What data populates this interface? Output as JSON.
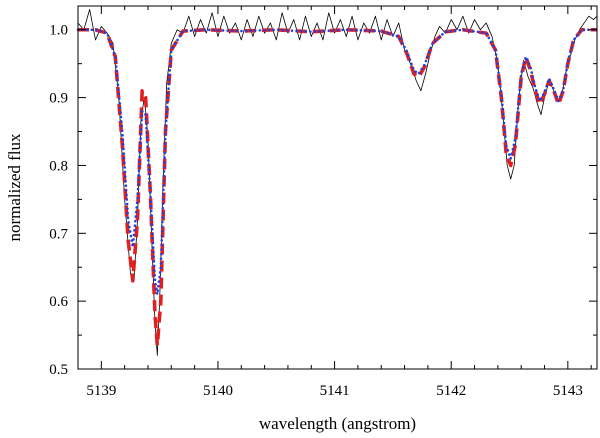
{
  "chart_data": {
    "type": "line",
    "title": "",
    "xlabel": "wavelength (angstrom)",
    "ylabel": "normalized flux",
    "xlim": [
      5138.8,
      5143.25
    ],
    "ylim": [
      0.5,
      1.035
    ],
    "x_ticks": [
      5139,
      5140,
      5141,
      5142,
      5143
    ],
    "x_tick_labels": [
      "5139",
      "5140",
      "5141",
      "5142",
      "5143"
    ],
    "y_ticks": [
      0.5,
      0.6,
      0.7,
      0.8,
      0.9,
      1.0
    ],
    "y_tick_labels": [
      "0.5",
      "0.6",
      "0.7",
      "0.8",
      "0.9",
      "1.0"
    ],
    "grid": false,
    "legend": "none",
    "series": [
      {
        "style": "solid-thin",
        "color": "#000000",
        "points": [
          [
            5138.8,
            1.01
          ],
          [
            5138.85,
            1.0
          ],
          [
            5138.9,
            1.03
          ],
          [
            5138.95,
            0.985
          ],
          [
            5139.0,
            1.005
          ],
          [
            5139.05,
            0.995
          ],
          [
            5139.1,
            0.98
          ],
          [
            5139.15,
            0.9
          ],
          [
            5139.2,
            0.75
          ],
          [
            5139.25,
            0.64
          ],
          [
            5139.28,
            0.63
          ],
          [
            5139.31,
            0.72
          ],
          [
            5139.34,
            0.87
          ],
          [
            5139.37,
            0.9
          ],
          [
            5139.4,
            0.84
          ],
          [
            5139.43,
            0.7
          ],
          [
            5139.46,
            0.57
          ],
          [
            5139.48,
            0.52
          ],
          [
            5139.5,
            0.6
          ],
          [
            5139.53,
            0.78
          ],
          [
            5139.56,
            0.92
          ],
          [
            5139.6,
            0.98
          ],
          [
            5139.65,
            1.0
          ],
          [
            5139.7,
            0.995
          ],
          [
            5139.75,
            1.02
          ],
          [
            5139.8,
            0.99
          ],
          [
            5139.85,
            1.015
          ],
          [
            5139.9,
            0.995
          ],
          [
            5139.95,
            1.025
          ],
          [
            5140.0,
            0.99
          ],
          [
            5140.05,
            1.02
          ],
          [
            5140.1,
            0.995
          ],
          [
            5140.15,
            1.01
          ],
          [
            5140.2,
            0.985
          ],
          [
            5140.25,
            1.015
          ],
          [
            5140.3,
            0.99
          ],
          [
            5140.35,
            1.02
          ],
          [
            5140.4,
            0.995
          ],
          [
            5140.45,
            1.01
          ],
          [
            5140.5,
            0.985
          ],
          [
            5140.55,
            1.025
          ],
          [
            5140.6,
            0.995
          ],
          [
            5140.65,
            1.015
          ],
          [
            5140.7,
            0.985
          ],
          [
            5140.75,
            1.02
          ],
          [
            5140.8,
            0.99
          ],
          [
            5140.85,
            1.01
          ],
          [
            5140.9,
            0.985
          ],
          [
            5140.95,
            1.025
          ],
          [
            5141.0,
            0.995
          ],
          [
            5141.05,
            1.015
          ],
          [
            5141.1,
            0.99
          ],
          [
            5141.15,
            1.02
          ],
          [
            5141.2,
            0.985
          ],
          [
            5141.25,
            1.01
          ],
          [
            5141.3,
            0.995
          ],
          [
            5141.35,
            1.02
          ],
          [
            5141.4,
            0.985
          ],
          [
            5141.45,
            1.015
          ],
          [
            5141.5,
            0.99
          ],
          [
            5141.55,
            1.01
          ],
          [
            5141.6,
            0.97
          ],
          [
            5141.65,
            0.95
          ],
          [
            5141.7,
            0.925
          ],
          [
            5141.74,
            0.91
          ],
          [
            5141.78,
            0.935
          ],
          [
            5141.82,
            0.965
          ],
          [
            5141.86,
            0.99
          ],
          [
            5141.9,
            1.005
          ],
          [
            5141.95,
            0.995
          ],
          [
            5142.0,
            1.015
          ],
          [
            5142.05,
            1.0
          ],
          [
            5142.1,
            1.02
          ],
          [
            5142.15,
            0.995
          ],
          [
            5142.2,
            1.015
          ],
          [
            5142.25,
            1.0
          ],
          [
            5142.3,
            1.01
          ],
          [
            5142.35,
            0.99
          ],
          [
            5142.4,
            0.95
          ],
          [
            5142.44,
            0.88
          ],
          [
            5142.48,
            0.8
          ],
          [
            5142.51,
            0.78
          ],
          [
            5142.54,
            0.8
          ],
          [
            5142.58,
            0.9
          ],
          [
            5142.62,
            0.955
          ],
          [
            5142.66,
            0.93
          ],
          [
            5142.7,
            0.915
          ],
          [
            5142.74,
            0.89
          ],
          [
            5142.77,
            0.875
          ],
          [
            5142.8,
            0.9
          ],
          [
            5142.84,
            0.925
          ],
          [
            5142.88,
            0.91
          ],
          [
            5142.92,
            0.895
          ],
          [
            5142.95,
            0.905
          ],
          [
            5142.98,
            0.935
          ],
          [
            5143.02,
            0.96
          ],
          [
            5143.06,
            0.985
          ],
          [
            5143.1,
            1.0
          ],
          [
            5143.14,
            1.01
          ],
          [
            5143.18,
            1.02
          ],
          [
            5143.22,
            1.015
          ],
          [
            5143.25,
            1.02
          ]
        ]
      },
      {
        "style": "dashed-thick",
        "color": "#e02020",
        "points": [
          [
            5138.8,
            1.0
          ],
          [
            5138.95,
            1.0
          ],
          [
            5139.05,
            0.995
          ],
          [
            5139.12,
            0.96
          ],
          [
            5139.18,
            0.83
          ],
          [
            5139.23,
            0.69
          ],
          [
            5139.27,
            0.63
          ],
          [
            5139.31,
            0.72
          ],
          [
            5139.35,
            0.91
          ],
          [
            5139.38,
            0.9
          ],
          [
            5139.42,
            0.76
          ],
          [
            5139.46,
            0.58
          ],
          [
            5139.48,
            0.535
          ],
          [
            5139.51,
            0.6
          ],
          [
            5139.55,
            0.85
          ],
          [
            5139.6,
            0.97
          ],
          [
            5139.7,
            0.998
          ],
          [
            5139.9,
            1.0
          ],
          [
            5140.2,
            0.998
          ],
          [
            5140.5,
            1.0
          ],
          [
            5140.8,
            0.997
          ],
          [
            5141.1,
            1.0
          ],
          [
            5141.4,
            0.998
          ],
          [
            5141.55,
            0.99
          ],
          [
            5141.62,
            0.965
          ],
          [
            5141.68,
            0.935
          ],
          [
            5141.72,
            0.93
          ],
          [
            5141.77,
            0.945
          ],
          [
            5141.84,
            0.98
          ],
          [
            5141.95,
            0.997
          ],
          [
            5142.1,
            1.0
          ],
          [
            5142.3,
            0.995
          ],
          [
            5142.38,
            0.97
          ],
          [
            5142.43,
            0.9
          ],
          [
            5142.47,
            0.82
          ],
          [
            5142.51,
            0.8
          ],
          [
            5142.55,
            0.83
          ],
          [
            5142.6,
            0.93
          ],
          [
            5142.64,
            0.96
          ],
          [
            5142.68,
            0.94
          ],
          [
            5142.72,
            0.91
          ],
          [
            5142.76,
            0.89
          ],
          [
            5142.8,
            0.905
          ],
          [
            5142.84,
            0.925
          ],
          [
            5142.88,
            0.91
          ],
          [
            5142.92,
            0.89
          ],
          [
            5142.96,
            0.91
          ],
          [
            5143.0,
            0.95
          ],
          [
            5143.05,
            0.985
          ],
          [
            5143.12,
            1.0
          ],
          [
            5143.25,
            1.0
          ]
        ]
      },
      {
        "style": "dotted",
        "color": "#2040e0",
        "points": [
          [
            5138.8,
            1.0
          ],
          [
            5138.95,
            1.0
          ],
          [
            5139.05,
            0.995
          ],
          [
            5139.12,
            0.96
          ],
          [
            5139.18,
            0.85
          ],
          [
            5139.23,
            0.72
          ],
          [
            5139.27,
            0.68
          ],
          [
            5139.31,
            0.75
          ],
          [
            5139.35,
            0.88
          ],
          [
            5139.38,
            0.875
          ],
          [
            5139.42,
            0.76
          ],
          [
            5139.46,
            0.63
          ],
          [
            5139.48,
            0.61
          ],
          [
            5139.51,
            0.65
          ],
          [
            5139.55,
            0.85
          ],
          [
            5139.6,
            0.97
          ],
          [
            5139.7,
            0.998
          ],
          [
            5139.9,
            1.0
          ],
          [
            5140.2,
            0.998
          ],
          [
            5140.5,
            1.0
          ],
          [
            5140.8,
            0.997
          ],
          [
            5141.1,
            1.0
          ],
          [
            5141.4,
            0.998
          ],
          [
            5141.55,
            0.99
          ],
          [
            5141.62,
            0.968
          ],
          [
            5141.68,
            0.94
          ],
          [
            5141.72,
            0.935
          ],
          [
            5141.77,
            0.948
          ],
          [
            5141.84,
            0.98
          ],
          [
            5141.95,
            0.997
          ],
          [
            5142.1,
            1.0
          ],
          [
            5142.3,
            0.995
          ],
          [
            5142.38,
            0.97
          ],
          [
            5142.43,
            0.905
          ],
          [
            5142.47,
            0.83
          ],
          [
            5142.51,
            0.81
          ],
          [
            5142.55,
            0.84
          ],
          [
            5142.6,
            0.935
          ],
          [
            5142.64,
            0.96
          ],
          [
            5142.68,
            0.945
          ],
          [
            5142.72,
            0.915
          ],
          [
            5142.76,
            0.895
          ],
          [
            5142.8,
            0.908
          ],
          [
            5142.84,
            0.928
          ],
          [
            5142.88,
            0.912
          ],
          [
            5142.92,
            0.895
          ],
          [
            5142.96,
            0.912
          ],
          [
            5143.0,
            0.952
          ],
          [
            5143.05,
            0.985
          ],
          [
            5143.12,
            1.0
          ],
          [
            5143.25,
            1.0
          ]
        ]
      }
    ]
  }
}
